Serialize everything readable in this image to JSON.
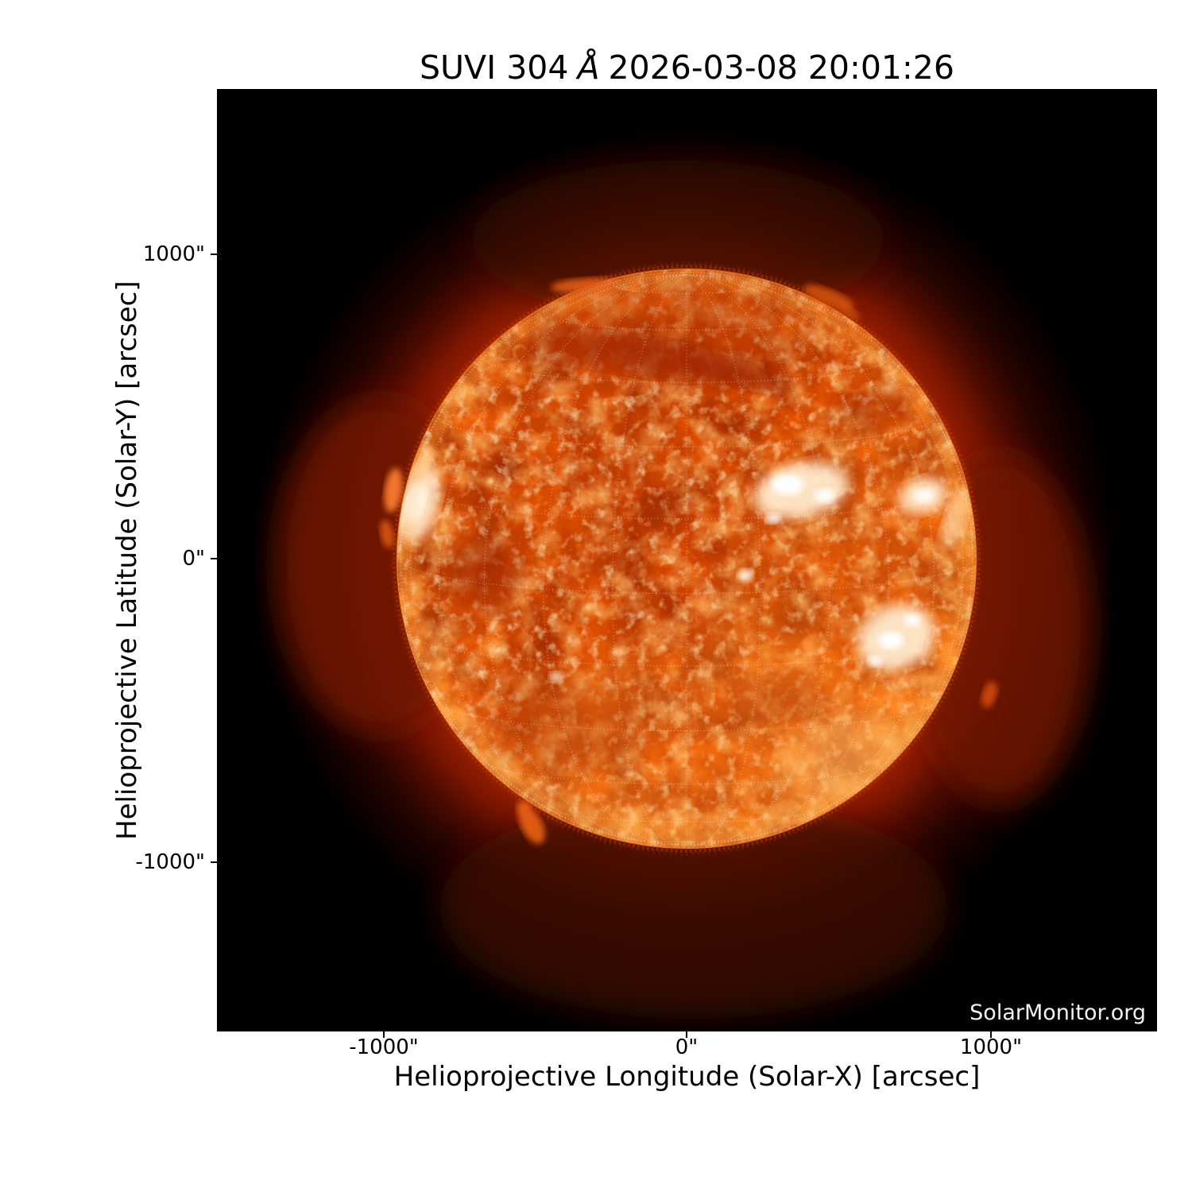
{
  "figure": {
    "title_parts": [
      "SUVI 304",
      "Å",
      "2026-03-08 20:01:26"
    ],
    "title": "SUVI 304 Å 2026-03-08 20:01:26",
    "watermark": "SolarMonitor.org"
  },
  "axes": {
    "x": {
      "label": "Helioprojective Longitude (Solar-X) [arcsec]",
      "ticks": [
        "-1000\"",
        "0\"",
        "1000\""
      ]
    },
    "y": {
      "label": "Helioprojective Latitude (Solar-Y) [arcsec]",
      "ticks": [
        "1000\"",
        "0\"",
        "-1000\""
      ]
    }
  },
  "chart_data": {
    "type": "heatmap",
    "title": "SUVI 304 Å 2026-03-08 20:01:26",
    "xlabel": "Helioprojective Longitude (Solar-X) [arcsec]",
    "ylabel": "Helioprojective Latitude (Solar-Y) [arcsec]",
    "xlim": [
      -1550,
      1550
    ],
    "ylim": [
      -1550,
      1550
    ],
    "x_ticks_arcsec": [
      -1000,
      0,
      1000
    ],
    "y_ticks_arcsec": [
      -1000,
      0,
      1000
    ],
    "grid": "dotted heliographic lat/lon grid overlay, ~15 degree spacing, white",
    "legend_position": "none",
    "instrument": "SUVI",
    "wavelength": "304 Å",
    "observed": "2026-03-08 20:01:26",
    "solar_disk": {
      "center_arcsec": [
        0,
        0
      ],
      "radius_arcsec_approx": 955,
      "description": "Full solar disk in He II 304 Å emission, mottled orange chromospheric network"
    },
    "features": [
      "bright white active-region plage band on western (right) hemisphere near lat 0 to +15",
      "bright active region on the eastern (left) limb",
      "second bright active-region cluster right of disk center at lat about -15",
      "dark filament channel arcing north of disk center",
      "prominences along upper, lower-left and right limb",
      "deep red corona glow fading to black around the limb",
      "spiky spicule fringe at lower limb"
    ],
    "colors": {
      "page_background": "#ffffff",
      "plot_background": "#000000",
      "disk_core": "#ee5a04",
      "disk_limb": "#ffa040",
      "corona_glow": "#7a1500",
      "active_region": "#fff6e8",
      "grid_overlay": "#ffffff",
      "axis_text": "#000000",
      "watermark_text": "#f2f2f2"
    }
  }
}
